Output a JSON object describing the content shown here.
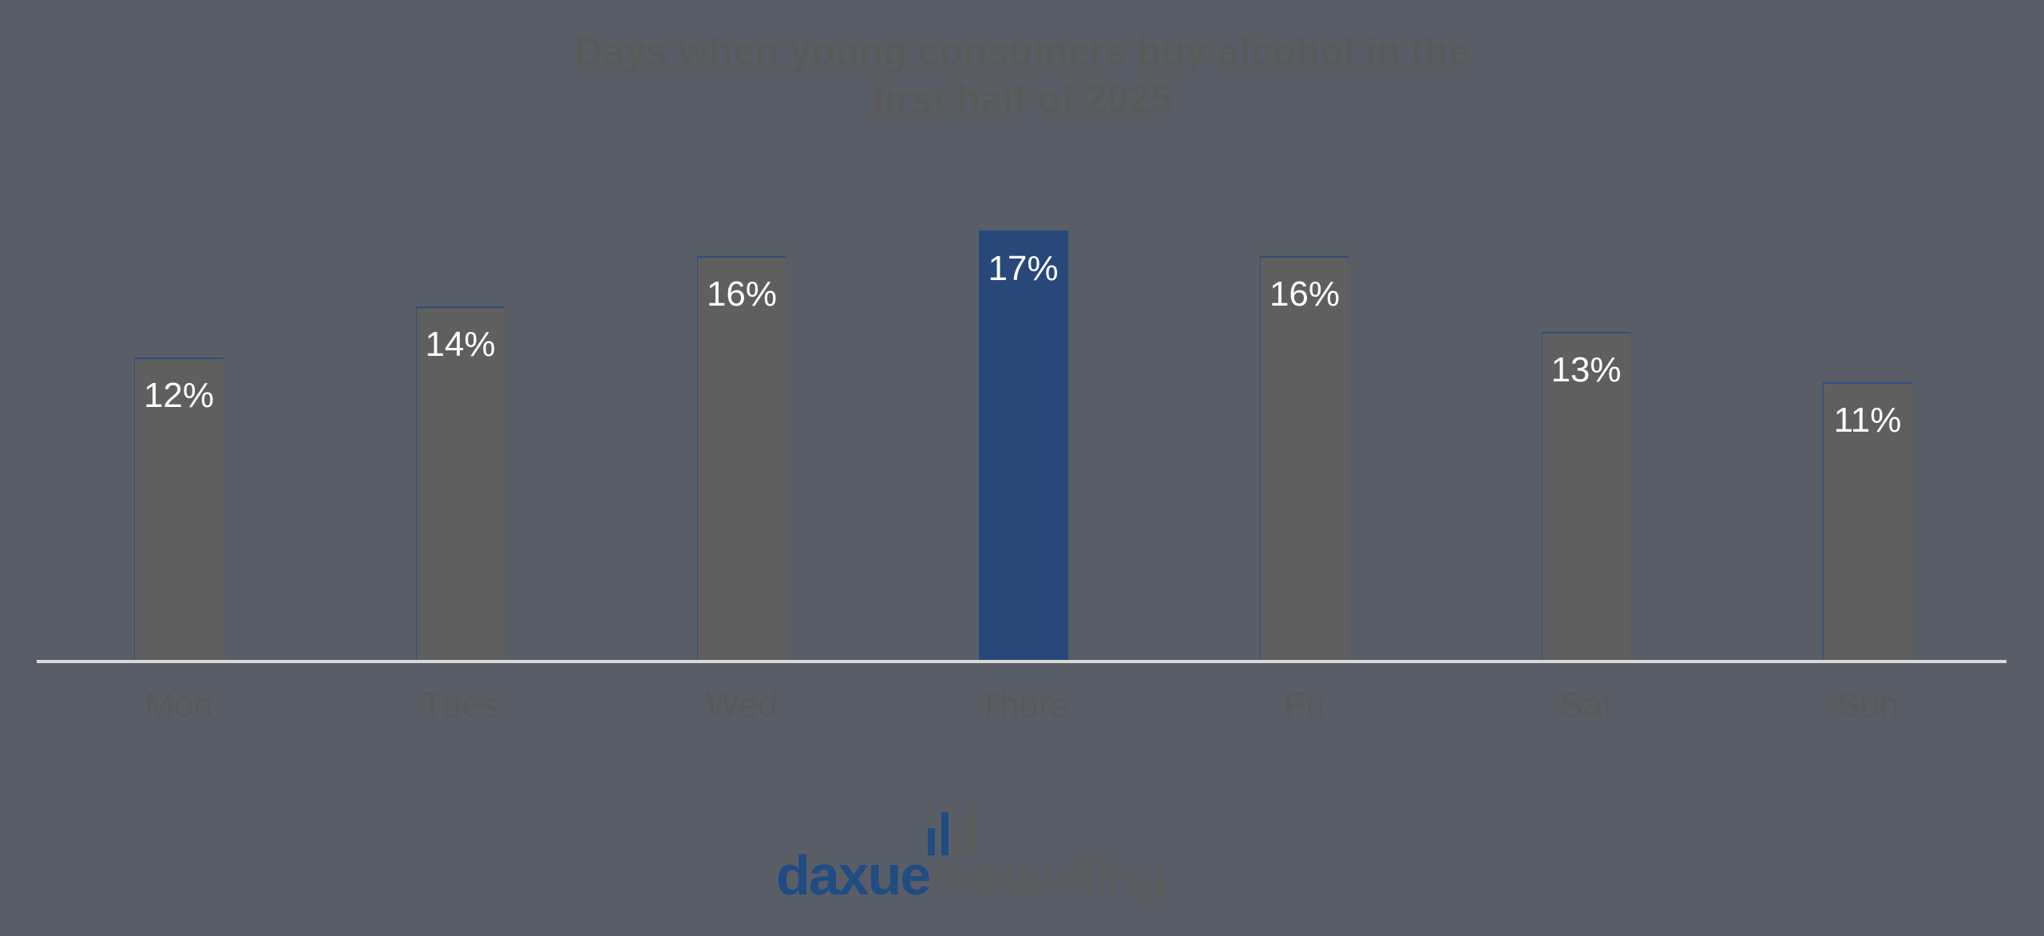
{
  "chart_data": {
    "type": "bar",
    "title": "Days when young consumers buy alcohol in the first half of 2025",
    "title_lines": [
      "Days when young consumers buy alcohol in the",
      "first half of 2025"
    ],
    "categories": [
      "Mon",
      "Tues",
      "Wed",
      "Thurs",
      "Fri",
      "Sat",
      "Sun"
    ],
    "values": [
      12,
      14,
      16,
      17,
      16,
      13,
      11
    ],
    "value_labels": [
      "12%",
      "14%",
      "16%",
      "17%",
      "16%",
      "13%",
      "11%"
    ],
    "unit": "%",
    "xlabel": "",
    "ylabel": "",
    "ylim": [
      0,
      17
    ],
    "grid": false,
    "legend": "none",
    "highlight_index": 3,
    "colors": {
      "default_bar": "#5f5f5f",
      "highlight_bar": "#274878",
      "background": "#595e66",
      "axis_line": "#d9d9d9",
      "value_label": "#ffffff",
      "category_label": "#595959"
    }
  },
  "branding": {
    "logo_part1": "daxue",
    "logo_part2": "consulting",
    "logo_icon": "bar-chart-icon"
  }
}
